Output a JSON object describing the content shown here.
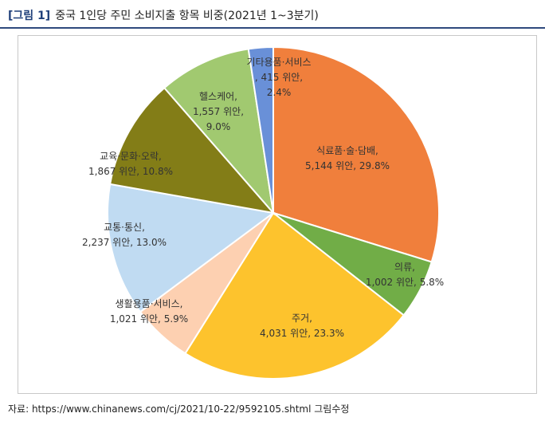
{
  "header": {
    "figure_label": "[그림 1]",
    "title": "중국 1인당 주민 소비지출 항목 비중(2021년 1~3분기)"
  },
  "source": {
    "text": "자료: https://www.chinanews.com/cj/2021/10-22/9592105.shtml 그림수정"
  },
  "colors": {
    "title_blue": "#1f3f7a",
    "rule": "#2f4a7d"
  },
  "chart_data": {
    "type": "pie",
    "start_at": "12 o'clock, clockwise",
    "slices": [
      {
        "category": "식료품·술·담배",
        "value": 5144,
        "percent": 29.8,
        "label_lines": [
          "식료품·술·담배,",
          "5,144 위안, 29.8%"
        ],
        "color": "#f07f3c"
      },
      {
        "category": "의류",
        "value": 1002,
        "percent": 5.8,
        "label_lines": [
          "의류,",
          "1,002 위안, 5.8%"
        ],
        "color": "#71ad47"
      },
      {
        "category": "주거",
        "value": 4031,
        "percent": 23.3,
        "label_lines": [
          "주거,",
          "4,031 위안, 23.3%"
        ],
        "color": "#fdc32d"
      },
      {
        "category": "생활용품·서비스",
        "value": 1021,
        "percent": 5.9,
        "label_lines": [
          "생활용품·서비스,",
          "1,021 위안, 5.9%"
        ],
        "color": "#fdd0b1"
      },
      {
        "category": "교통·통신",
        "value": 2237,
        "percent": 13.0,
        "label_lines": [
          "교통·통신,",
          "2,237 위안, 13.0%"
        ],
        "color": "#c0dbf2"
      },
      {
        "category": "교육·문화·오락",
        "value": 1867,
        "percent": 10.8,
        "label_lines": [
          "교육·문화·오락,",
          "1,867 위안, 10.8%"
        ],
        "color": "#837d17"
      },
      {
        "category": "헬스케어",
        "value": 1557,
        "percent": 9.0,
        "label_lines": [
          "헬스케어,",
          "1,557 위안,",
          "9.0%"
        ],
        "color": "#a1c970"
      },
      {
        "category": "기타용품·서비스",
        "value": 415,
        "percent": 2.4,
        "label_lines": [
          "기타용품·서비스",
          ", 415 위안,",
          "2.4%"
        ],
        "color": "#6990d8"
      }
    ]
  }
}
